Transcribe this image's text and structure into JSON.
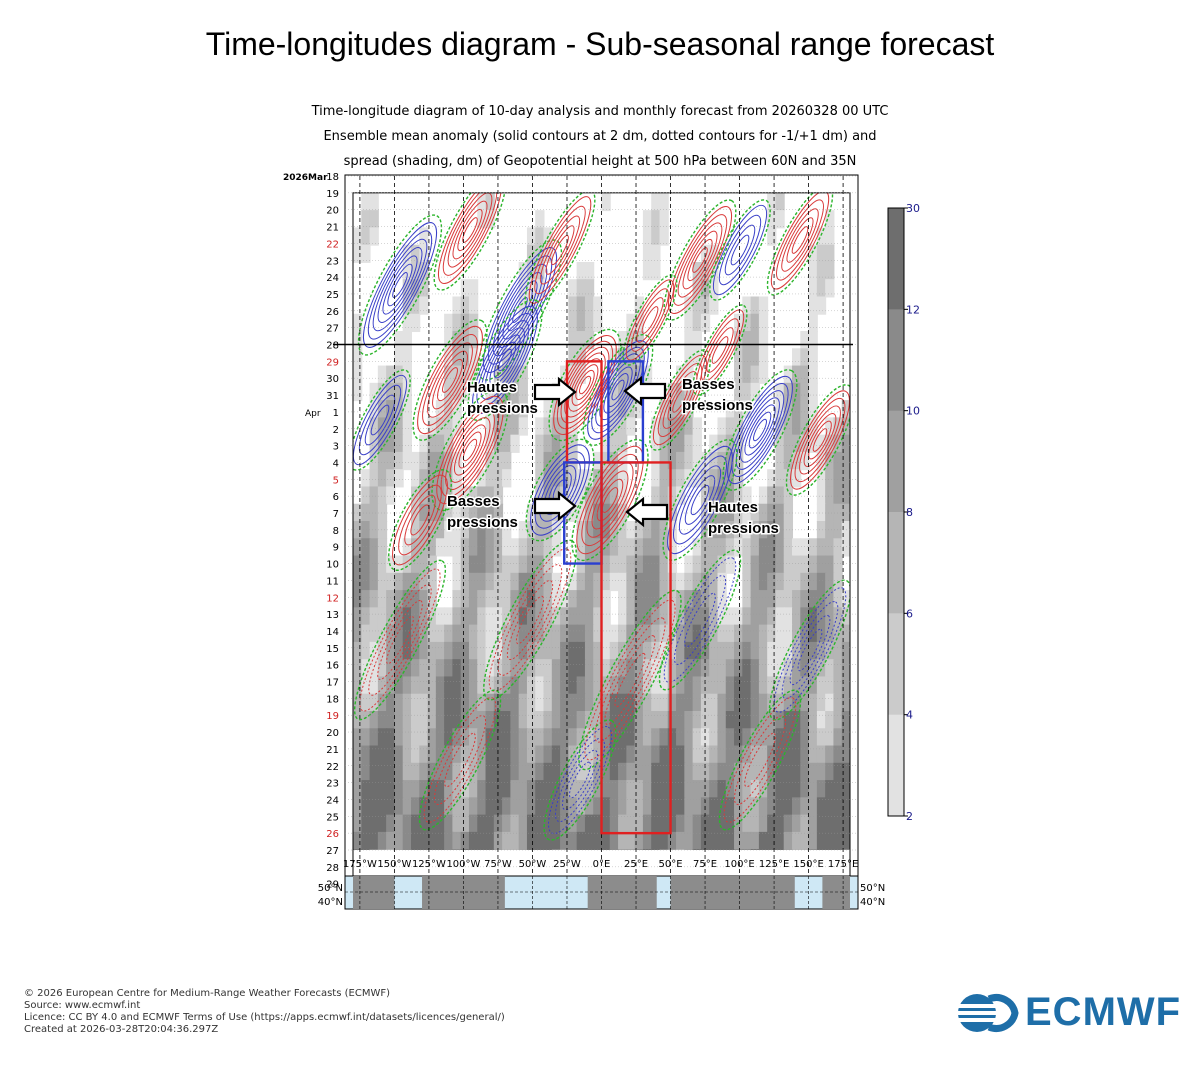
{
  "page": {
    "title": "Time-longitudes diagram - Sub-seasonal range forecast"
  },
  "footer": {
    "lines": [
      "© 2026 European Centre for Medium-Range Weather Forecasts (ECMWF)",
      "Source: www.ecmwf.int",
      "Licence: CC BY 4.0 and ECMWF Terms of Use (https://apps.ecmwf.int/datasets/licences/general/)",
      "Created at 2026-03-28T20:04:36.297Z"
    ],
    "logo_text": "ECMWF",
    "logo_icon": "ecmwf-logo-icon"
  },
  "chart_data": {
    "type": "heatmap",
    "title_lines": [
      "Time-longitude diagram of 10-day analysis and monthly forecast from 20260328 00 UTC",
      "Ensemble mean anomaly (solid contours at 2 dm, dotted contours for -1/+1 dm) and",
      "spread (shading, dm) of Geopotential height at 500 hPa between 60N and 35N"
    ],
    "x_ticks": [
      "175°W",
      "150°W",
      "125°W",
      "100°W",
      "75°W",
      "50°W",
      "25°W",
      "0°E",
      "25°E",
      "50°E",
      "75°E",
      "100°E",
      "125°E",
      "150°E",
      "175°E"
    ],
    "x_range": [
      -180,
      180
    ],
    "y_month_labels": [
      {
        "day": 18,
        "label": "2026Mar"
      },
      {
        "day": 1,
        "label": "Apr"
      }
    ],
    "y_days": [
      18,
      19,
      20,
      21,
      22,
      23,
      24,
      25,
      26,
      27,
      28,
      29,
      30,
      31,
      1,
      2,
      3,
      4,
      5,
      6,
      7,
      8,
      9,
      10,
      11,
      12,
      13,
      14,
      15,
      16,
      17,
      18,
      19,
      20,
      21,
      22,
      23,
      24,
      25,
      26,
      27,
      28,
      29
    ],
    "y_red_days_index": [
      4,
      11,
      18,
      25,
      32,
      39
    ],
    "analysis_forecast_split_day": "28 Mar",
    "colorbar": {
      "ticks": [
        "30",
        "12",
        "10",
        "8",
        "6",
        "4",
        "2"
      ],
      "colors": [
        "#6e6e6e",
        "#8a8a8a",
        "#a0a0a0",
        "#b5b5b5",
        "#cbcbcb",
        "#e2e2e2"
      ]
    },
    "contour_colors": {
      "positive": "#d93a3a",
      "negative": "#3a40c8",
      "zero": "#2bb52b"
    },
    "map_strip_lat_labels": [
      "50°N",
      "40°N"
    ],
    "annotations": [
      {
        "text_lines": [
          "Hautes",
          "pressions"
        ],
        "arrow": "right"
      },
      {
        "text_lines": [
          "Basses",
          "pressions"
        ],
        "arrow": "left"
      },
      {
        "text_lines": [
          "Basses",
          "pressions"
        ],
        "arrow": "right"
      },
      {
        "text_lines": [
          "Hautes",
          "pressions"
        ],
        "arrow": "left"
      }
    ],
    "boxes": [
      {
        "color": "#e02020",
        "lon": [
          -25,
          0
        ],
        "days": [
          "29 Mar",
          "4 Apr"
        ]
      },
      {
        "color": "#2a3fd0",
        "lon": [
          5,
          30
        ],
        "days": [
          "29 Mar",
          "4 Apr"
        ]
      },
      {
        "color": "#2a3fd0",
        "lon": [
          -27,
          0
        ],
        "days": [
          "4 Apr",
          "10 Apr"
        ]
      },
      {
        "color": "#e02020",
        "lon": [
          0,
          50
        ],
        "days": [
          "4 Apr",
          "26 Apr"
        ]
      }
    ]
  }
}
